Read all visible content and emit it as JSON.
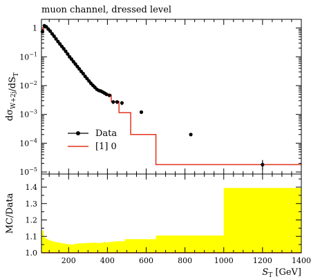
{
  "chart_data": [
    {
      "type": "line",
      "title": "muon channel, dressed level",
      "ylabel": "dσ_{W+2j}/dS_T",
      "yscale": "log",
      "xlim": [
        60,
        1400
      ],
      "ylim": [
        8.5e-06,
        2.0
      ],
      "yticks": [
        {
          "value": 1,
          "label": "1"
        },
        {
          "value": 0.1,
          "label": "10^-1"
        },
        {
          "value": 0.01,
          "label": "10^-2"
        },
        {
          "value": 0.001,
          "label": "10^-3"
        },
        {
          "value": 0.0001,
          "label": "10^-4"
        },
        {
          "value": 1e-05,
          "label": "10^-5"
        }
      ],
      "legend": {
        "position": "lower-left",
        "entries": [
          {
            "label": "Data",
            "marker": "point"
          },
          {
            "label": "[1] 0",
            "marker": "line"
          }
        ]
      },
      "bin_edges": [
        60,
        70,
        80,
        90,
        100,
        110,
        120,
        130,
        140,
        150,
        160,
        170,
        180,
        190,
        200,
        210,
        220,
        230,
        240,
        250,
        260,
        270,
        280,
        290,
        300,
        310,
        320,
        330,
        340,
        350,
        360,
        370,
        380,
        390,
        400,
        420,
        440,
        460,
        490,
        520,
        650,
        1000,
        1400
      ],
      "series": [
        {
          "name": "Data",
          "x": [
            65,
            75,
            85,
            95,
            105,
            115,
            125,
            135,
            145,
            155,
            165,
            175,
            185,
            195,
            205,
            215,
            225,
            235,
            245,
            255,
            265,
            275,
            285,
            295,
            305,
            315,
            325,
            335,
            345,
            355,
            365,
            375,
            385,
            395,
            410,
            430,
            450,
            475,
            575,
            830,
            1200
          ],
          "values": [
            0.75,
            1.2,
            1.1,
            0.92,
            0.78,
            0.63,
            0.52,
            0.42,
            0.34,
            0.28,
            0.23,
            0.19,
            0.155,
            0.125,
            0.1,
            0.083,
            0.068,
            0.056,
            0.046,
            0.038,
            0.031,
            0.026,
            0.021,
            0.0175,
            0.0145,
            0.012,
            0.0102,
            0.0088,
            0.0075,
            0.0068,
            0.0065,
            0.006,
            0.0055,
            0.005,
            0.0046,
            0.0027,
            0.0027,
            0.0025,
            0.0012,
            0.0002,
            1.8e-05
          ],
          "yerr_high": [
            0.8,
            1.26,
            1.15,
            0.96,
            0.81,
            0.66,
            0.54,
            0.44,
            0.355,
            0.29,
            0.24,
            0.2,
            0.162,
            0.131,
            0.105,
            0.087,
            0.072,
            0.059,
            0.049,
            0.04,
            0.033,
            0.028,
            0.0225,
            0.0188,
            0.0157,
            0.013,
            0.0111,
            0.0096,
            0.0083,
            0.0075,
            0.0072,
            0.0067,
            0.0062,
            0.0057,
            0.0052,
            0.0031,
            0.0031,
            0.0029,
            0.00135,
            0.000225,
            2.6e-05
          ],
          "yerr_low": [
            0.7,
            1.14,
            1.05,
            0.88,
            0.75,
            0.6,
            0.5,
            0.4,
            0.325,
            0.27,
            0.22,
            0.18,
            0.148,
            0.119,
            0.095,
            0.079,
            0.064,
            0.053,
            0.043,
            0.036,
            0.029,
            0.024,
            0.0195,
            0.0162,
            0.0133,
            0.011,
            0.0093,
            0.008,
            0.0067,
            0.0061,
            0.0058,
            0.0053,
            0.0048,
            0.0043,
            0.004,
            0.0023,
            0.0023,
            0.0021,
            0.00105,
            0.000175,
            1.2e-05
          ]
        },
        {
          "name": "[1] 0",
          "values": [
            0.8,
            1.22,
            1.13,
            0.95,
            0.8,
            0.65,
            0.53,
            0.43,
            0.35,
            0.285,
            0.235,
            0.195,
            0.158,
            0.128,
            0.103,
            0.085,
            0.07,
            0.057,
            0.047,
            0.039,
            0.032,
            0.0265,
            0.0215,
            0.018,
            0.015,
            0.0124,
            0.0105,
            0.009,
            0.0078,
            0.007,
            0.0067,
            0.0062,
            0.0057,
            0.0052,
            0.0048,
            0.0028,
            0.0028,
            0.00115,
            0.00115,
            0.0002,
            1.8e-05,
            1.8e-05
          ]
        }
      ]
    },
    {
      "type": "area",
      "ylabel": "MC/Data",
      "xlabel": "S_T [GeV]",
      "xlim": [
        60,
        1400
      ],
      "ylim": [
        1.0,
        1.48
      ],
      "xticks": [
        200,
        400,
        600,
        800,
        1000,
        1200,
        1400
      ],
      "yticks": [
        "1.0",
        "1.1",
        "1.2",
        "1.3",
        "1.4"
      ],
      "band_color": "#ffff00",
      "bin_edges": [
        60,
        70,
        80,
        90,
        100,
        110,
        120,
        130,
        140,
        150,
        160,
        170,
        180,
        190,
        200,
        210,
        220,
        230,
        240,
        250,
        260,
        270,
        280,
        290,
        300,
        310,
        320,
        330,
        340,
        350,
        360,
        370,
        380,
        390,
        400,
        420,
        440,
        460,
        490,
        520,
        650,
        1000,
        1400
      ],
      "band_upper": [
        1.135,
        1.095,
        1.085,
        1.08,
        1.075,
        1.07,
        1.068,
        1.065,
        1.063,
        1.06,
        1.058,
        1.057,
        1.055,
        1.052,
        1.052,
        1.05,
        1.05,
        1.055,
        1.055,
        1.058,
        1.056,
        1.058,
        1.058,
        1.06,
        1.06,
        1.06,
        1.06,
        1.062,
        1.06,
        1.06,
        1.06,
        1.062,
        1.065,
        1.063,
        1.065,
        1.068,
        1.07,
        1.07,
        1.083,
        1.083,
        1.105,
        1.395
      ],
      "band_lower": [
        1.0,
        1.0,
        1.0,
        1.0,
        1.0,
        1.0,
        1.0,
        1.0,
        1.0,
        1.0,
        1.0,
        1.0,
        1.0,
        1.0,
        1.0,
        1.0,
        1.0,
        1.0,
        1.0,
        1.0,
        1.0,
        1.0,
        1.0,
        1.0,
        1.0,
        1.0,
        1.0,
        1.0,
        1.0,
        1.0,
        1.0,
        1.0,
        1.0,
        1.0,
        1.0,
        1.0,
        1.0,
        1.0,
        1.0,
        1.0,
        1.0,
        1.0
      ]
    }
  ],
  "colors": {
    "data": "#000000",
    "prediction": "#e3311b",
    "band": "#ffff00"
  }
}
